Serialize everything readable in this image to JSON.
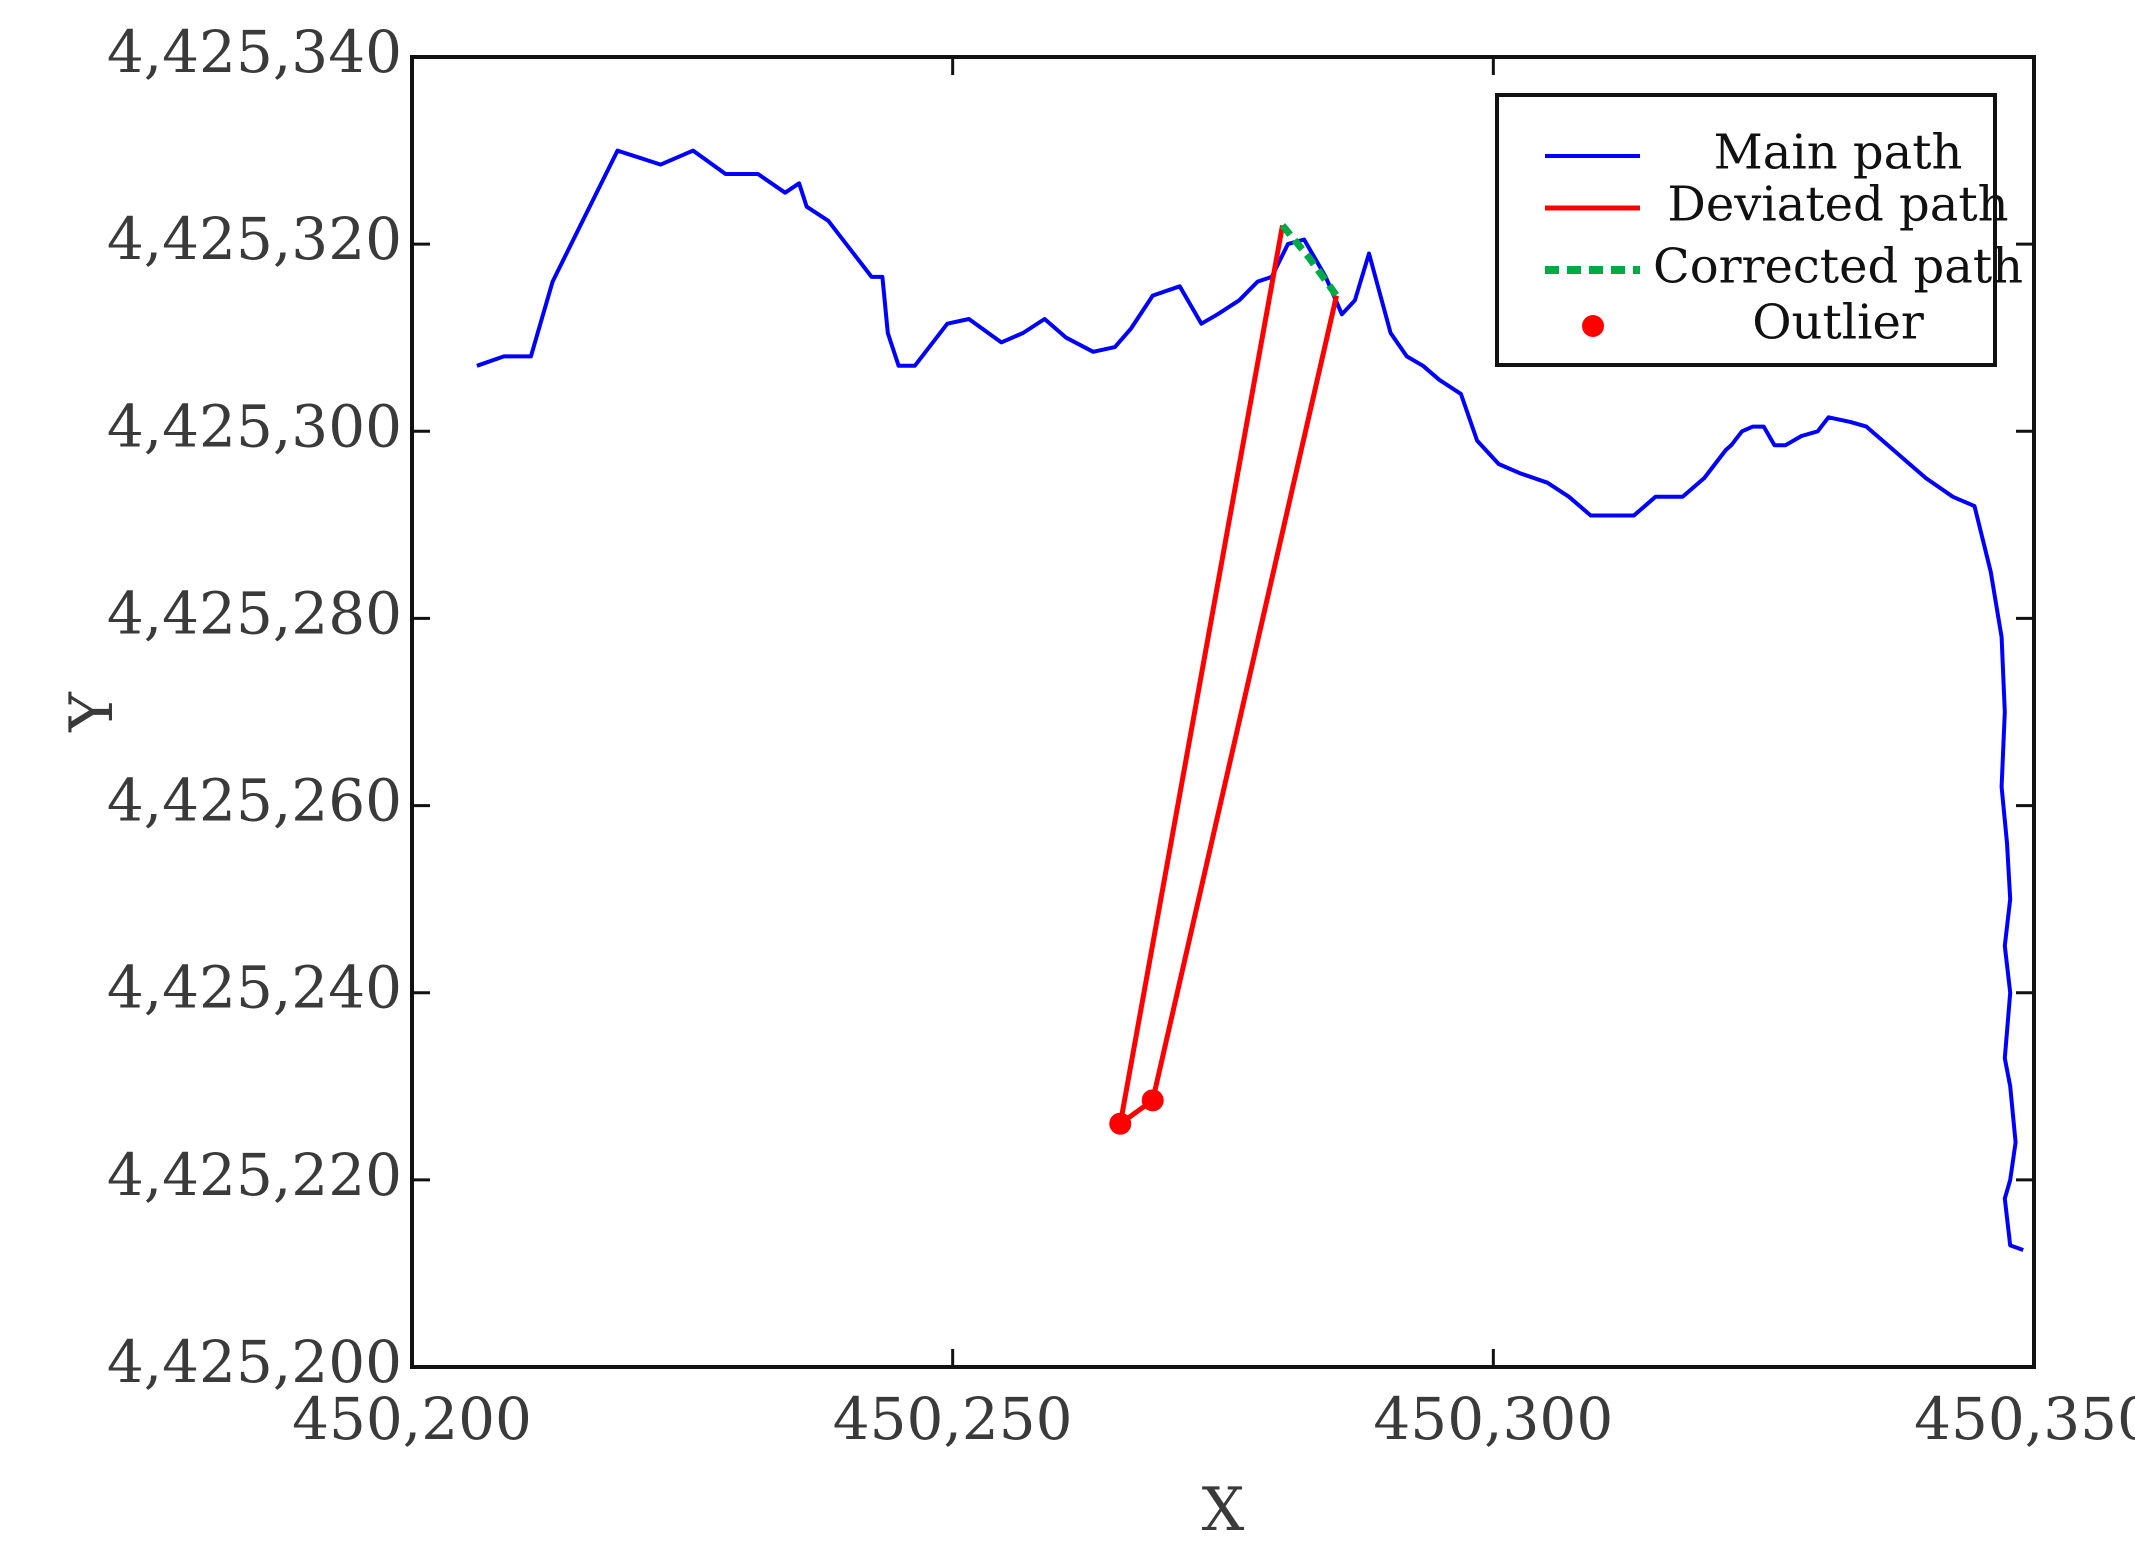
{
  "chart_data": {
    "type": "line",
    "xlabel": "X",
    "ylabel": "Y",
    "xlim": [
      450200,
      450350
    ],
    "ylim": [
      4425200,
      4425340
    ],
    "xticks": [
      450200,
      450250,
      450300,
      450350
    ],
    "yticks": [
      4425200,
      4425220,
      4425240,
      4425260,
      4425280,
      4425300,
      4425320,
      4425340
    ],
    "xtick_labels": [
      "450,200",
      "450,250",
      "450,300",
      "450,350"
    ],
    "ytick_labels": [
      "4,425,200",
      "4,425,220",
      "4,425,240",
      "4,425,260",
      "4,425,280",
      "4,425,300",
      "4,425,320",
      "4,425,340"
    ],
    "grid": false,
    "legend_position": "top-right",
    "series": [
      {
        "name": "Main path",
        "style": "solid",
        "color": "#0000ff",
        "x": [
          450206,
          450208.5,
          450211,
          450213,
          450216,
          450219,
          450223,
          450226,
          450229,
          450232,
          450234.5,
          450235.8,
          450236.5,
          450238.5,
          450240.5,
          450242.5,
          450243.5,
          450244,
          450245,
          450246.5,
          450249.5,
          450251.5,
          450254.5,
          450256.5,
          450258.5,
          450260.5,
          450263,
          450265,
          450266.5,
          450268.5,
          450271,
          450273,
          450274.5,
          450276.5,
          450278.2,
          450279.5,
          450281,
          450282.5,
          450284.5,
          450286,
          450287.2,
          450288.5,
          450290.5,
          450292,
          450293.5,
          450295,
          450297,
          450298.5,
          450300.5,
          450302.5,
          450305,
          450307,
          450309,
          450311,
          450313,
          450315,
          450317.5,
          450319.5,
          450321.5,
          450322,
          450323,
          450324,
          450325,
          450326,
          450327,
          450328.5,
          450330,
          450331,
          450333,
          450334.5,
          450336,
          450338,
          450340,
          450342.5,
          450344.5,
          450346,
          450347,
          450347.3,
          450347,
          450347.5,
          450347.8,
          450347.3,
          450347.8,
          450347.3,
          450347.8,
          450348.3,
          450347.8,
          450347.3,
          450347.8,
          450349
        ],
        "y": [
          4425307,
          4425308,
          4425308,
          4425316,
          4425323,
          4425330,
          4425328.5,
          4425330,
          4425327.5,
          4425327.5,
          4425325.5,
          4425326.5,
          4425324,
          4425322.5,
          4425319.5,
          4425316.5,
          4425316.5,
          4425310.5,
          4425307,
          4425307,
          4425311.5,
          4425312,
          4425309.5,
          4425310.5,
          4425312,
          4425310,
          4425308.5,
          4425309,
          4425311,
          4425314.5,
          4425315.5,
          4425311.5,
          4425312.5,
          4425314,
          4425316,
          4425316.5,
          4425320,
          4425320.5,
          4425316.5,
          4425312.5,
          4425314,
          4425319,
          4425310.5,
          4425308,
          4425307,
          4425305.5,
          4425304,
          4425299,
          4425296.5,
          4425295.5,
          4425294.5,
          4425293,
          4425291,
          4425291,
          4425291,
          4425293,
          4425293,
          4425295,
          4425298,
          4425298.5,
          4425300,
          4425300.5,
          4425300.5,
          4425298.5,
          4425298.5,
          4425299.5,
          4425300,
          4425301.5,
          4425301,
          4425300.5,
          4425299,
          4425297,
          4425295,
          4425293,
          4425292,
          4425285,
          4425278,
          4425270,
          4425262,
          4425256,
          4425250,
          4425245,
          4425240,
          4425233,
          4425230,
          4425224,
          4425220,
          4425218,
          4425213,
          4425212.5
        ]
      },
      {
        "name": "Deviated path",
        "style": "solid",
        "color": "#ff0000",
        "x": [
          450280.5,
          450265.5,
          450268.5,
          450285.5
        ],
        "y": [
          4425322,
          4425226,
          4425228.5,
          4425314.5
        ]
      },
      {
        "name": "Corrected path",
        "style": "dashed",
        "color": "#00aa44",
        "x": [
          450280.5,
          450283,
          450285.5
        ],
        "y": [
          4425322,
          4425318.5,
          4425314.5
        ]
      },
      {
        "name": "Outlier",
        "style": "marker",
        "color": "#ff0000",
        "x": [
          450265.5,
          450268.5
        ],
        "y": [
          4425226,
          4425228.5
        ]
      }
    ]
  }
}
